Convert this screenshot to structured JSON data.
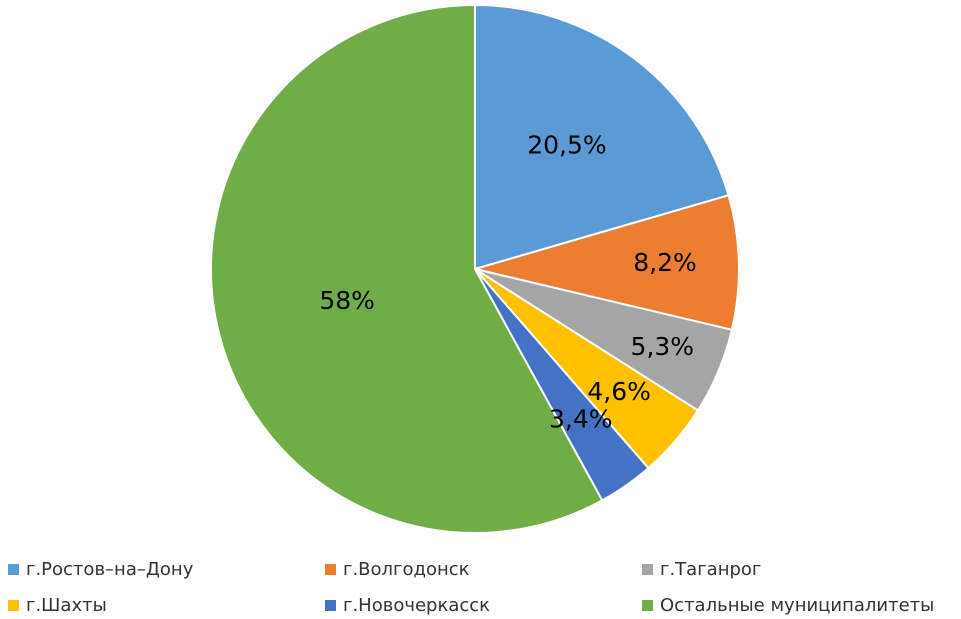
{
  "chart_data": {
    "type": "pie",
    "slices": [
      {
        "label": "г.Ростов–на–Дону",
        "value": 20.5,
        "display": "20,5%",
        "color": "#5B9BD5"
      },
      {
        "label": "г.Волгодонск",
        "value": 8.2,
        "display": "8,2%",
        "color": "#ED7D31"
      },
      {
        "label": "г.Таганрог",
        "value": 5.3,
        "display": "5,3%",
        "color": "#A5A5A5"
      },
      {
        "label": "г.Шахты",
        "value": 4.6,
        "display": "4,6%",
        "color": "#FFC000"
      },
      {
        "label": "г.Новочеркасск",
        "value": 3.4,
        "display": "3,4%",
        "color": "#4472C4"
      },
      {
        "label": "Остальные муниципалитеты",
        "value": 58,
        "display": "58%",
        "color": "#70AD47"
      }
    ],
    "legend_position": "bottom"
  }
}
